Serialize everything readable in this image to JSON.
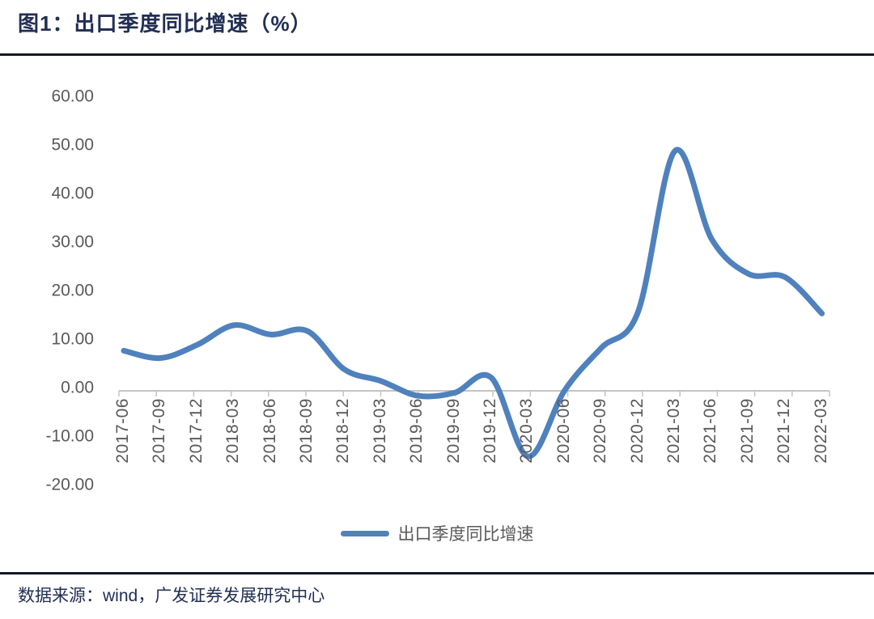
{
  "figure": {
    "title": "图1：出口季度同比增速（%）",
    "source": "数据来源：wind，广发证券发展研究中心"
  },
  "legend": {
    "label": "出口季度同比增速"
  },
  "colors": {
    "series_line": "#4F81BD",
    "title_text": "#222E54",
    "source_text": "#222E54",
    "axis_text": "#595959",
    "axis_line": "#C4C4C4",
    "divider_rule": "#141925"
  },
  "chart_data": {
    "type": "line",
    "smooth": true,
    "title": "图1：出口季度同比增速（%）",
    "categories": [
      "2017-06",
      "2017-09",
      "2017-12",
      "2018-03",
      "2018-06",
      "2018-09",
      "2018-12",
      "2019-03",
      "2019-06",
      "2019-09",
      "2019-12",
      "2020-03",
      "2020-06",
      "2020-09",
      "2020-12",
      "2021-03",
      "2021-06",
      "2021-09",
      "2021-12",
      "2022-03"
    ],
    "series": [
      {
        "name": "出口季度同比增速",
        "values": [
          8.2,
          6.7,
          9.4,
          13.4,
          11.5,
          12.2,
          4.4,
          2.0,
          -1.0,
          -0.4,
          2.7,
          -13.4,
          0.1,
          8.8,
          16.2,
          49.0,
          31.0,
          23.9,
          23.2,
          15.8
        ]
      }
    ],
    "xlabel": "",
    "ylabel": "",
    "ylim": [
      -20,
      60
    ],
    "yticks": [
      60,
      50,
      40,
      30,
      20,
      10,
      0,
      -10,
      -20
    ],
    "ytick_labels": [
      "60.00",
      "50.00",
      "40.00",
      "30.00",
      "20.00",
      "10.00",
      "0.00",
      "-10.00",
      "-20.00"
    ],
    "grid": false,
    "legend_position": "bottom"
  }
}
